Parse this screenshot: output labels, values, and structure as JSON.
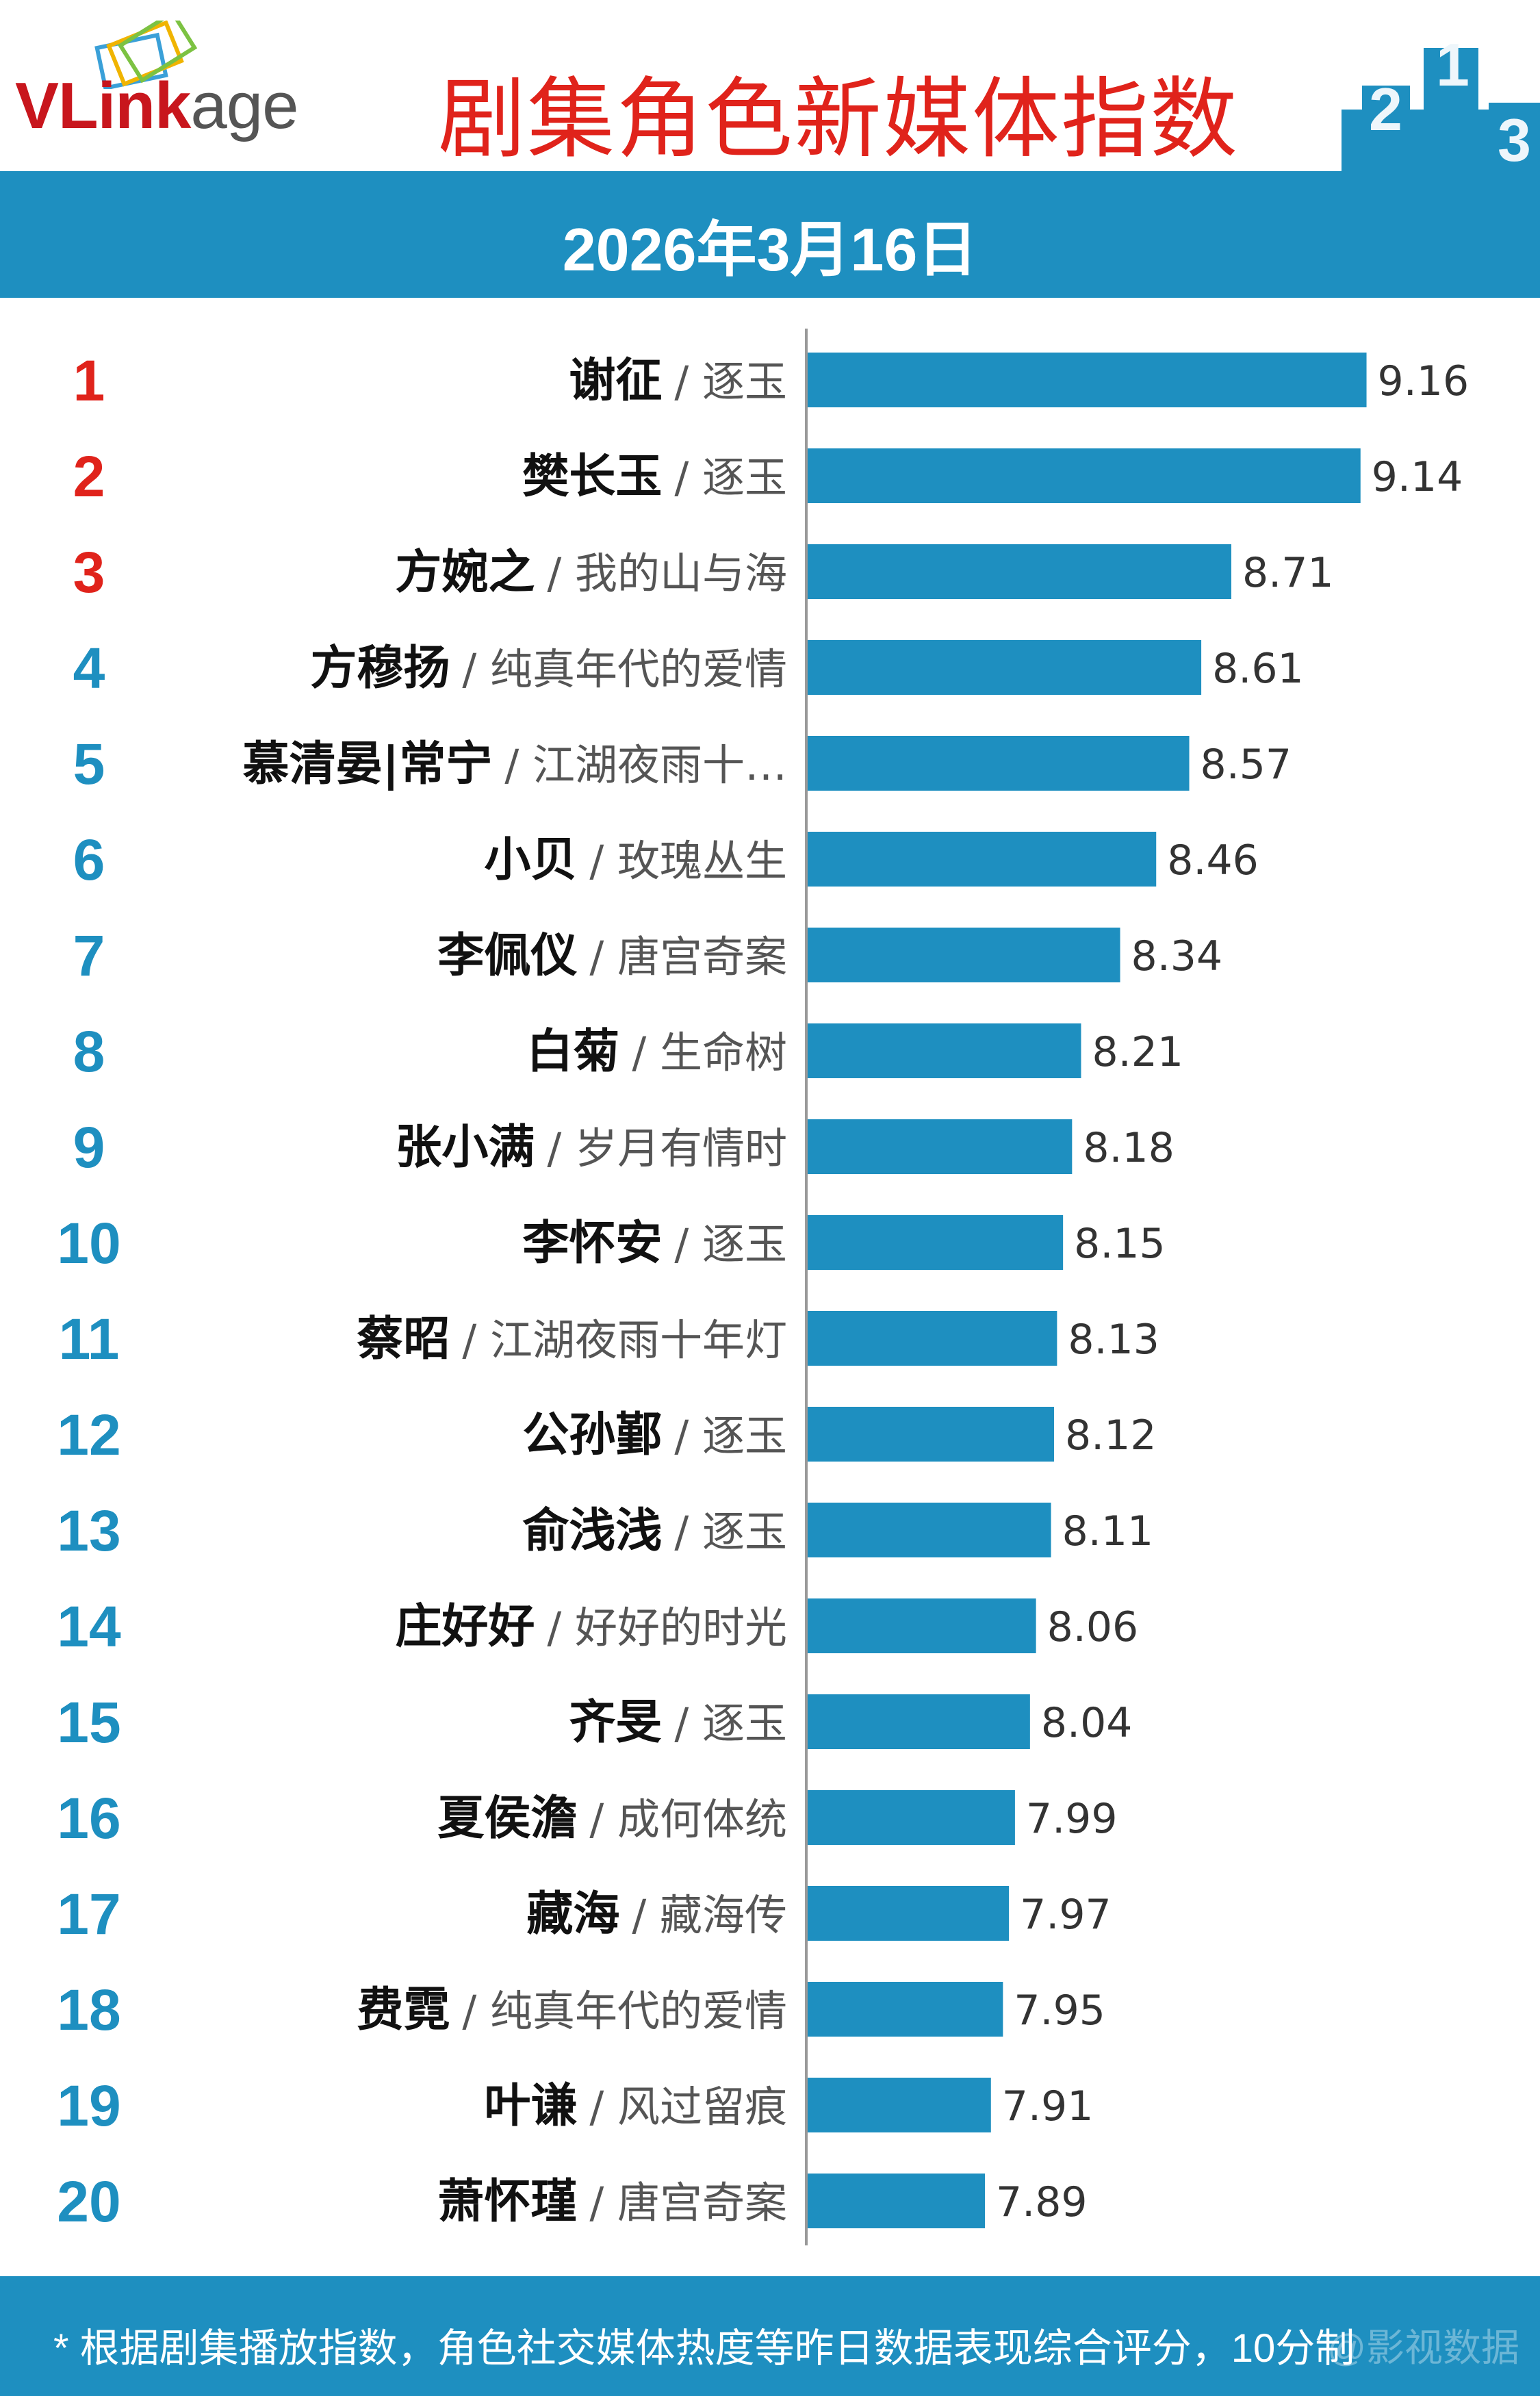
{
  "header": {
    "brand_red": "VLink",
    "brand_rest": "age",
    "title": "剧集角色新媒体指数",
    "podium_labels": [
      "2",
      "1",
      "3"
    ]
  },
  "date": "2026年3月16日",
  "colors": {
    "bar": "#1e8fc0",
    "rank_top": "#e0231b",
    "rank_rest": "#1e8fc0"
  },
  "chart_data": {
    "type": "bar",
    "orientation": "horizontal",
    "title": "剧集角色新媒体指数",
    "subtitle": "2026年3月16日",
    "xlim": [
      7.3,
      9.4
    ],
    "ranks": [
      "1",
      "2",
      "3",
      "4",
      "5",
      "6",
      "7",
      "8",
      "9",
      "10",
      "11",
      "12",
      "13",
      "14",
      "15",
      "16",
      "17",
      "18",
      "19",
      "20"
    ],
    "names": [
      "谢征",
      "樊长玉",
      "方婉之",
      "方穆扬",
      "慕清晏|常宁",
      "小贝",
      "李佩仪",
      "白菊",
      "张小满",
      "李怀安",
      "蔡昭",
      "公孙鄞",
      "俞浅浅",
      "庄好好",
      "齐旻",
      "夏侯澹",
      "藏海",
      "费霓",
      "叶谦",
      "萧怀瑾"
    ],
    "dramas": [
      "/ 逐玉",
      "/ 逐玉",
      "/ 我的山与海",
      "/ 纯真年代的爱情",
      "/ 江湖夜雨十…",
      "/ 玫瑰丛生",
      "/ 唐宫奇案",
      "/ 生命树",
      "/ 岁月有情时",
      "/ 逐玉",
      "/ 江湖夜雨十年灯",
      "/ 逐玉",
      "/ 逐玉",
      "/ 好好的时光",
      "/ 逐玉",
      "/ 成何体统",
      "/ 藏海传",
      "/ 纯真年代的爱情",
      "/ 风过留痕",
      "/ 唐宫奇案"
    ],
    "values": [
      9.16,
      9.14,
      8.71,
      8.61,
      8.57,
      8.46,
      8.34,
      8.21,
      8.18,
      8.15,
      8.13,
      8.12,
      8.11,
      8.06,
      8.04,
      7.99,
      7.97,
      7.95,
      7.91,
      7.89
    ],
    "value_labels": [
      "9.16",
      "9.14",
      "8.71",
      "8.61",
      "8.57",
      "8.46",
      "8.34",
      "8.21",
      "8.18",
      "8.15",
      "8.13",
      "8.12",
      "8.11",
      "8.06",
      "8.04",
      "7.99",
      "7.97",
      "7.95",
      "7.91",
      "7.89"
    ]
  },
  "footer": {
    "note": "* 根据剧集播放指数，角色社交媒体热度等昨日数据表现综合评分，10分制",
    "watermark": "@影视数据"
  }
}
